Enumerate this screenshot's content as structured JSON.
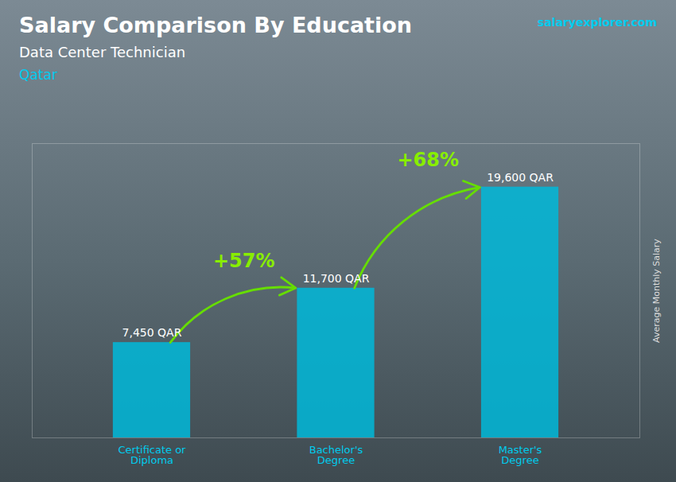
{
  "chart_data": {
    "type": "bar",
    "title": "Salary Comparison By Education",
    "subtitle": "Data Center Technician",
    "annotations": [
      "Qatar",
      "salaryexplorer.com",
      "+57%",
      "+68%"
    ],
    "ylabel": "Average Monthly Salary",
    "categories": [
      "Certificate or\nDiploma",
      "Bachelor's\nDegree",
      "Master's\nDegree"
    ],
    "values": [
      7450,
      11700,
      19600
    ],
    "value_labels": [
      "7,450 QAR",
      "11,700 QAR",
      "19,600 QAR"
    ],
    "data_labels": true,
    "color": "#00b8d9",
    "ylim": [
      0,
      23000
    ],
    "tick_labels": "x",
    "grid": false
  }
}
